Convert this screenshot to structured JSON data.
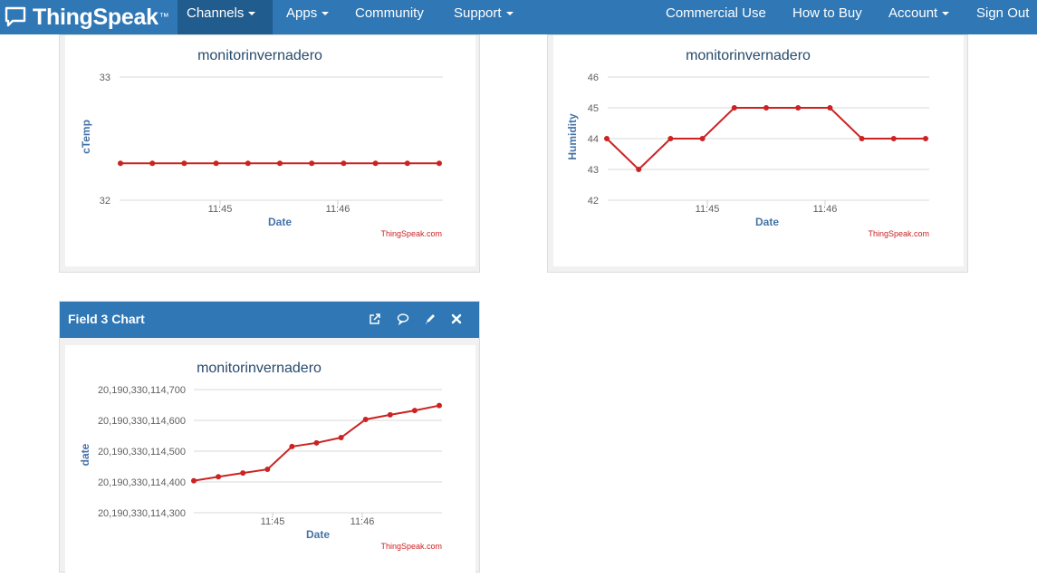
{
  "navbar": {
    "brand": "ThingSpeak",
    "brand_tm": "™",
    "left_items": [
      {
        "label": "Channels",
        "dropdown": true,
        "active": true
      },
      {
        "label": "Apps",
        "dropdown": true
      },
      {
        "label": "Community",
        "dropdown": false
      },
      {
        "label": "Support",
        "dropdown": true
      }
    ],
    "right_items": [
      {
        "label": "Commercial Use",
        "dropdown": false
      },
      {
        "label": "How to Buy",
        "dropdown": false
      },
      {
        "label": "Account",
        "dropdown": true
      },
      {
        "label": "Sign Out",
        "dropdown": false
      }
    ]
  },
  "colors": {
    "navbar": "#2f77b5",
    "series": "#cc2222",
    "axis_title": "#4572a7",
    "credit": "#cc2222"
  },
  "field3": {
    "title": "Field 3 Chart",
    "icons": [
      "external-link-icon",
      "comment-icon",
      "pencil-icon",
      "close-icon"
    ]
  },
  "charts": [
    {
      "id": "chart1",
      "title": "monitorinvernadero",
      "ylabel": "cTemp",
      "xlabel": "Date",
      "credit": "ThingSpeak.com",
      "type": "line",
      "yticks": [
        "33",
        "32"
      ],
      "xticks": [
        "11:45",
        "11:46"
      ],
      "ylim": [
        32,
        33
      ],
      "values": [
        32.3,
        32.3,
        32.3,
        32.3,
        32.3,
        32.3,
        32.3,
        32.3,
        32.3,
        32.3,
        32.3
      ]
    },
    {
      "id": "chart2",
      "title": "monitorinvernadero",
      "ylabel": "Humidity",
      "xlabel": "Date",
      "credit": "ThingSpeak.com",
      "type": "line",
      "yticks": [
        "46",
        "45",
        "44",
        "43",
        "42"
      ],
      "xticks": [
        "11:45",
        "11:46"
      ],
      "ylim": [
        42,
        46
      ],
      "values": [
        44,
        43,
        44,
        44,
        45,
        45,
        45,
        45,
        44,
        44,
        44
      ]
    },
    {
      "id": "chart3",
      "title": "monitorinvernadero",
      "ylabel": "date",
      "xlabel": "Date",
      "credit": "ThingSpeak.com",
      "type": "line",
      "yticks": [
        "20,190,330,114,700",
        "20,190,330,114,600",
        "20,190,330,114,500",
        "20,190,330,114,400",
        "20,190,330,114,300"
      ],
      "xticks": [
        "11:45",
        "11:46"
      ],
      "ylim": [
        20190330114300,
        20190330114700
      ],
      "values": [
        20190330114404,
        20190330114417,
        20190330114429,
        20190330114441,
        20190330114515,
        20190330114527,
        20190330114544,
        20190330114603,
        20190330114618,
        20190330114632,
        20190330114648
      ]
    }
  ],
  "chart_data": [
    {
      "type": "line",
      "title": "monitorinvernadero",
      "xlabel": "Date",
      "ylabel": "cTemp",
      "ylim": [
        32,
        33
      ],
      "x_ticks": [
        "11:45",
        "11:46"
      ],
      "series": [
        {
          "name": "",
          "values": [
            32.3,
            32.3,
            32.3,
            32.3,
            32.3,
            32.3,
            32.3,
            32.3,
            32.3,
            32.3,
            32.3
          ]
        }
      ]
    },
    {
      "type": "line",
      "title": "monitorinvernadero",
      "xlabel": "Date",
      "ylabel": "Humidity",
      "ylim": [
        42,
        46
      ],
      "x_ticks": [
        "11:45",
        "11:46"
      ],
      "series": [
        {
          "name": "",
          "values": [
            44,
            43,
            44,
            44,
            45,
            45,
            45,
            45,
            44,
            44,
            44
          ]
        }
      ]
    },
    {
      "type": "line",
      "title": "monitorinvernadero",
      "xlabel": "Date",
      "ylabel": "date",
      "ylim": [
        20190330114300,
        20190330114700
      ],
      "x_ticks": [
        "11:45",
        "11:46"
      ],
      "series": [
        {
          "name": "",
          "values": [
            20190330114404,
            20190330114417,
            20190330114429,
            20190330114441,
            20190330114515,
            20190330114527,
            20190330114544,
            20190330114603,
            20190330114618,
            20190330114632,
            20190330114648
          ]
        }
      ]
    }
  ]
}
